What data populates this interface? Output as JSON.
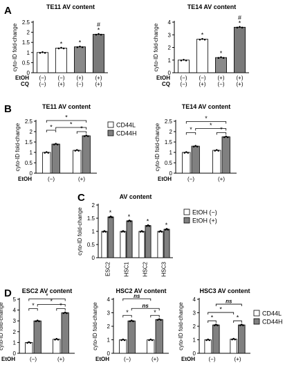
{
  "panel_labels": [
    "A",
    "B",
    "C",
    "D"
  ],
  "colors": {
    "white_bar": "#ffffff",
    "grey_bar": "#808080",
    "dark_bar": "#7a7a7a",
    "axis": "#000000",
    "dot": "#000000"
  },
  "chart_data": [
    {
      "id": "A1",
      "type": "bar",
      "title": "TE11 AV content",
      "ylabel": "cyto-ID fold-change",
      "ylim": [
        0,
        2.5
      ],
      "yticks": [
        0,
        0.5,
        1.0,
        1.5,
        2.0,
        2.5
      ],
      "categories": [
        "1",
        "2",
        "3",
        "4"
      ],
      "values": [
        1.0,
        1.22,
        1.28,
        1.9
      ],
      "bar_colors": [
        "#ffffff",
        "#ffffff",
        "#8a8a8a",
        "#7a7a7a"
      ],
      "condition_rows": [
        {
          "name": "EtOH",
          "values": [
            "(−)",
            "(−)",
            "(+)",
            "(+)"
          ]
        },
        {
          "name": "CQ",
          "values": [
            "(−)",
            "(+)",
            "(−)",
            "(+)"
          ]
        }
      ],
      "markers": [
        "",
        "*",
        "*",
        "#\n*"
      ]
    },
    {
      "id": "A2",
      "type": "bar",
      "title": "TE14 AV content",
      "ylabel": "cyto-ID fold-change",
      "ylim": [
        0,
        4
      ],
      "yticks": [
        0,
        1,
        2,
        3,
        4
      ],
      "categories": [
        "1",
        "2",
        "3",
        "4"
      ],
      "values": [
        1.0,
        2.65,
        1.2,
        3.6
      ],
      "bar_colors": [
        "#ffffff",
        "#ffffff",
        "#8a8a8a",
        "#7a7a7a"
      ],
      "condition_rows": [
        {
          "name": "EtOH",
          "values": [
            "(−)",
            "(−)",
            "(+)",
            "(+)"
          ]
        },
        {
          "name": "CQ",
          "values": [
            "(−)",
            "(+)",
            "(−)",
            "(+)"
          ]
        }
      ],
      "markers": [
        "",
        "*",
        "*",
        "#\n*"
      ]
    },
    {
      "id": "B1",
      "type": "bar",
      "title": "TE11 AV content",
      "ylabel": "cyto-ID fold-change",
      "ylim": [
        0,
        2.5
      ],
      "yticks": [
        0,
        0.5,
        1.0,
        1.5,
        2.0,
        2.5
      ],
      "groups": [
        "(−)",
        "(+)"
      ],
      "group_axis_label": "EtOH",
      "series": [
        {
          "name": "CD44L",
          "values": [
            1.0,
            1.1
          ]
        },
        {
          "name": "CD44H",
          "values": [
            1.4,
            1.8
          ]
        }
      ],
      "brackets": [
        "*",
        "*",
        "*",
        "*"
      ]
    },
    {
      "id": "B2",
      "type": "bar",
      "title": "TE14 AV content",
      "ylabel": "cyto-ID fold-change",
      "ylim": [
        0,
        2.5
      ],
      "yticks": [
        0,
        0.5,
        1.0,
        1.5,
        2.0,
        2.5
      ],
      "groups": [
        "(−)",
        "(+)"
      ],
      "group_axis_label": "EtOH",
      "series": [
        {
          "name": "CD44L",
          "values": [
            1.0,
            1.1
          ]
        },
        {
          "name": "CD44H",
          "values": [
            1.3,
            1.75
          ]
        }
      ],
      "brackets": [
        "*",
        "*",
        "*",
        "*"
      ]
    },
    {
      "id": "C",
      "type": "bar",
      "title": "AV content",
      "ylabel": "cyto-ID fold-change",
      "ylim": [
        0,
        2.0
      ],
      "yticks": [
        0,
        0.5,
        1.0,
        1.5,
        2.0
      ],
      "categories": [
        "ESC2",
        "HSC1",
        "HSC2",
        "HSC3"
      ],
      "series": [
        {
          "name": "EtOH (−)",
          "values": [
            1.0,
            1.0,
            1.0,
            1.0
          ]
        },
        {
          "name": "EtOH (+)",
          "values": [
            1.55,
            1.4,
            1.22,
            1.08
          ]
        }
      ],
      "markers": [
        "*",
        "*",
        "*",
        "*"
      ]
    },
    {
      "id": "D1",
      "type": "bar",
      "title": "ESC2 AV content",
      "ylabel": "cyto-ID fold-change",
      "ylim": [
        0,
        5
      ],
      "yticks": [
        0,
        1,
        2,
        3,
        4,
        5
      ],
      "groups": [
        "(−)",
        "(+)"
      ],
      "group_axis_label": "EtOH",
      "series": [
        {
          "name": "CD44L",
          "values": [
            1.0,
            1.3
          ]
        },
        {
          "name": "CD44H",
          "values": [
            3.0,
            3.75
          ]
        }
      ],
      "brackets": [
        "*",
        "*",
        "*",
        "*"
      ]
    },
    {
      "id": "D2",
      "type": "bar",
      "title": "HSC2 AV content",
      "ylabel": "cyto-ID fold-change",
      "ylim": [
        0,
        4
      ],
      "yticks": [
        0,
        1,
        2,
        3,
        4
      ],
      "groups": [
        "(−)",
        "(+)"
      ],
      "group_axis_label": "EtOH",
      "series": [
        {
          "name": "CD44L",
          "values": [
            1.0,
            1.0
          ]
        },
        {
          "name": "CD44H",
          "values": [
            2.4,
            2.5
          ]
        }
      ],
      "brackets": [
        "*",
        "*",
        "ns",
        "ns"
      ]
    },
    {
      "id": "D3",
      "type": "bar",
      "title": "HSC3 AV content",
      "ylabel": "cyto-ID fold-change",
      "ylim": [
        0,
        4
      ],
      "yticks": [
        0,
        1,
        2,
        3,
        4
      ],
      "groups": [
        "(−)",
        "(+)"
      ],
      "group_axis_label": "EtOH",
      "series": [
        {
          "name": "CD44L",
          "values": [
            1.0,
            1.05
          ]
        },
        {
          "name": "CD44H",
          "values": [
            2.1,
            2.1
          ]
        }
      ],
      "brackets": [
        "*",
        "*",
        "*",
        "ns"
      ]
    }
  ],
  "legends": {
    "B": [
      "CD44L",
      "CD44H"
    ],
    "C": [
      "EtOH (−)",
      "EtOH (+)"
    ],
    "D": [
      "CD44L",
      "CD44H"
    ]
  }
}
